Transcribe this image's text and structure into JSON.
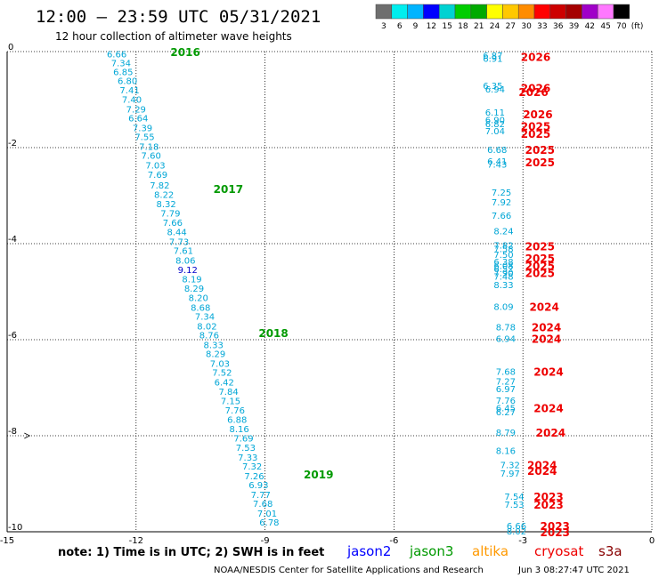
{
  "header": {
    "title": "12:00 – 23:59 UTC 05/31/2021",
    "subtitle": "12 hour collection of altimeter wave heights"
  },
  "colorbar": {
    "labels": [
      "3",
      "6",
      "9",
      "12",
      "15",
      "18",
      "21",
      "24",
      "27",
      "30",
      "33",
      "36",
      "39",
      "42",
      "45",
      "70"
    ],
    "unit": "(ft)",
    "colors": [
      "#6e6e6e",
      "#00eeee",
      "#00b4ff",
      "#0000ff",
      "#00d2d2",
      "#00cd00",
      "#00aa00",
      "#ffff00",
      "#ffc800",
      "#ff8c00",
      "#ff0000",
      "#cd0000",
      "#a50000",
      "#a000c8",
      "#ff78ff",
      "#000000"
    ]
  },
  "footer": {
    "note": "note: 1) Time is in UTC; 2) SWH is in feet",
    "legend": [
      {
        "name": "jason2",
        "color": "#0000ff"
      },
      {
        "name": "jason3",
        "color": "#009900"
      },
      {
        "name": "altika",
        "color": "#ff9900"
      },
      {
        "name": "cryosat",
        "color": "#ee0000"
      },
      {
        "name": "s3a",
        "color": "#880000"
      }
    ],
    "credit": "NOAA/NESDIS Center for Satellite Applications and Research",
    "timestamp": "Jun  3 08:27:47 UTC 2021"
  },
  "chart_data": {
    "type": "scatter",
    "title": "12:00 – 23:59 UTC 05/31/2021",
    "xlim": [
      -15,
      0
    ],
    "ylim": [
      -10,
      0
    ],
    "x_ticks": [
      "-15",
      "-12",
      "-9",
      "-6",
      "-3",
      "0"
    ],
    "y_ticks": [
      "0",
      "-2",
      "-4",
      "-6",
      "-8",
      "-10"
    ],
    "grid": true,
    "series": [
      {
        "name": "jason3",
        "color": "#00a6d6",
        "points": [
          {
            "x": -12.45,
            "y": -0.05,
            "v": "6.66"
          },
          {
            "x": -12.35,
            "y": -0.23,
            "v": "7.34"
          },
          {
            "x": -12.3,
            "y": -0.42,
            "v": "6.85"
          },
          {
            "x": -12.2,
            "y": -0.6,
            "v": "6.80"
          },
          {
            "x": -12.15,
            "y": -0.8,
            "v": "7.41"
          },
          {
            "x": -12.1,
            "y": -0.99,
            "v": "7.40"
          },
          {
            "x": -12.0,
            "y": -1.19,
            "v": "7.29"
          },
          {
            "x": -11.95,
            "y": -1.38,
            "v": "6.64"
          },
          {
            "x": -11.85,
            "y": -1.58,
            "v": "7.39"
          },
          {
            "x": -11.8,
            "y": -1.77,
            "v": "7.55"
          },
          {
            "x": -11.7,
            "y": -1.97,
            "v": "7.18"
          },
          {
            "x": -11.65,
            "y": -2.16,
            "v": "7.60"
          },
          {
            "x": -11.55,
            "y": -2.36,
            "v": "7.03"
          },
          {
            "x": -11.5,
            "y": -2.56,
            "v": "7.69"
          },
          {
            "x": -11.45,
            "y": -2.78,
            "v": "7.82"
          },
          {
            "x": -11.35,
            "y": -2.97,
            "v": "8.22"
          },
          {
            "x": -11.3,
            "y": -3.17,
            "v": "8.32"
          },
          {
            "x": -11.2,
            "y": -3.36,
            "v": "7.79"
          },
          {
            "x": -11.15,
            "y": -3.56,
            "v": "7.66"
          },
          {
            "x": -11.05,
            "y": -3.75,
            "v": "8.44"
          },
          {
            "x": -11.0,
            "y": -3.95,
            "v": "7.73"
          },
          {
            "x": -10.9,
            "y": -4.14,
            "v": "7.61"
          },
          {
            "x": -10.85,
            "y": -4.34,
            "v": "8.06"
          },
          {
            "x": -10.8,
            "y": -4.54,
            "v": "9.12",
            "c": "#0000cc"
          },
          {
            "x": -10.7,
            "y": -4.73,
            "v": "8.19"
          },
          {
            "x": -10.65,
            "y": -4.93,
            "v": "8.29"
          },
          {
            "x": -10.55,
            "y": -5.12,
            "v": "8.20"
          },
          {
            "x": -10.5,
            "y": -5.32,
            "v": "8.68"
          },
          {
            "x": -10.4,
            "y": -5.51,
            "v": "7.34"
          },
          {
            "x": -10.35,
            "y": -5.71,
            "v": "8.02"
          },
          {
            "x": -10.3,
            "y": -5.9,
            "v": "8.76"
          },
          {
            "x": -10.2,
            "y": -6.1,
            "v": "8.33"
          },
          {
            "x": -10.15,
            "y": -6.29,
            "v": "8.29"
          },
          {
            "x": -10.05,
            "y": -6.49,
            "v": "7.03"
          },
          {
            "x": -10.0,
            "y": -6.68,
            "v": "7.52"
          },
          {
            "x": -9.95,
            "y": -6.88,
            "v": "6.42"
          },
          {
            "x": -9.85,
            "y": -7.07,
            "v": "7.84"
          },
          {
            "x": -9.8,
            "y": -7.27,
            "v": "7.15"
          },
          {
            "x": -9.7,
            "y": -7.46,
            "v": "7.76"
          },
          {
            "x": -9.65,
            "y": -7.66,
            "v": "6.88"
          },
          {
            "x": -9.6,
            "y": -7.85,
            "v": "8.16"
          },
          {
            "x": -9.5,
            "y": -8.05,
            "v": "7.69"
          },
          {
            "x": -9.45,
            "y": -8.24,
            "v": "7.53"
          },
          {
            "x": -9.4,
            "y": -8.44,
            "v": "7.33"
          },
          {
            "x": -9.3,
            "y": -8.63,
            "v": "7.32"
          },
          {
            "x": -9.25,
            "y": -8.83,
            "v": "7.26"
          },
          {
            "x": -9.15,
            "y": -9.02,
            "v": "6.93"
          },
          {
            "x": -9.1,
            "y": -9.22,
            "v": "7.77"
          },
          {
            "x": -9.05,
            "y": -9.41,
            "v": "7.68"
          },
          {
            "x": -8.95,
            "y": -9.61,
            "v": "7.01"
          },
          {
            "x": -8.9,
            "y": -9.8,
            "v": "6.78"
          }
        ]
      },
      {
        "name": "cryosat",
        "color": "#00a6d6",
        "points": [
          {
            "x": -3.7,
            "y": -0.07,
            "v": "6.87"
          },
          {
            "x": -3.7,
            "y": -0.14,
            "v": "6.91"
          },
          {
            "x": -3.7,
            "y": -0.7,
            "v": "6.35"
          },
          {
            "x": -3.65,
            "y": -0.78,
            "v": "6.94"
          },
          {
            "x": -3.65,
            "y": -1.26,
            "v": "6.11"
          },
          {
            "x": -3.65,
            "y": -1.42,
            "v": "6.90"
          },
          {
            "x": -3.65,
            "y": -1.5,
            "v": "6.82"
          },
          {
            "x": -3.65,
            "y": -1.65,
            "v": "7.04"
          },
          {
            "x": -3.6,
            "y": -2.04,
            "v": "6.68"
          },
          {
            "x": -3.6,
            "y": -2.28,
            "v": "6.41"
          },
          {
            "x": -3.6,
            "y": -2.34,
            "v": "7.43"
          },
          {
            "x": -3.5,
            "y": -2.93,
            "v": "7.25"
          },
          {
            "x": -3.5,
            "y": -3.13,
            "v": "7.92"
          },
          {
            "x": -3.5,
            "y": -3.41,
            "v": "7.66"
          },
          {
            "x": -3.45,
            "y": -3.73,
            "v": "8.24"
          },
          {
            "x": -3.45,
            "y": -4.03,
            "v": "7.82"
          },
          {
            "x": -3.45,
            "y": -4.1,
            "v": "7.58"
          },
          {
            "x": -3.45,
            "y": -4.22,
            "v": "7.50"
          },
          {
            "x": -3.45,
            "y": -4.37,
            "v": "6.38"
          },
          {
            "x": -3.45,
            "y": -4.45,
            "v": "6.08"
          },
          {
            "x": -3.45,
            "y": -4.52,
            "v": "6.52"
          },
          {
            "x": -3.45,
            "y": -4.6,
            "v": "7.90"
          },
          {
            "x": -3.45,
            "y": -4.68,
            "v": "7.48"
          },
          {
            "x": -3.45,
            "y": -4.85,
            "v": "8.33"
          },
          {
            "x": -3.45,
            "y": -5.31,
            "v": "8.09"
          },
          {
            "x": -3.4,
            "y": -5.73,
            "v": "8.78"
          },
          {
            "x": -3.4,
            "y": -5.97,
            "v": "6.94"
          },
          {
            "x": -3.4,
            "y": -6.66,
            "v": "7.68"
          },
          {
            "x": -3.4,
            "y": -6.86,
            "v": "7.27"
          },
          {
            "x": -3.4,
            "y": -7.02,
            "v": "6.97"
          },
          {
            "x": -3.4,
            "y": -7.26,
            "v": "7.76"
          },
          {
            "x": -3.4,
            "y": -7.42,
            "v": "6.45"
          },
          {
            "x": -3.4,
            "y": -7.5,
            "v": "6.27"
          },
          {
            "x": -3.4,
            "y": -7.93,
            "v": "8.79"
          },
          {
            "x": -3.4,
            "y": -8.31,
            "v": "8.16"
          },
          {
            "x": -3.3,
            "y": -8.6,
            "v": "7.32"
          },
          {
            "x": -3.3,
            "y": -8.78,
            "v": "7.97"
          },
          {
            "x": -3.2,
            "y": -9.26,
            "v": "7.54"
          },
          {
            "x": -3.2,
            "y": -9.43,
            "v": "7.53"
          },
          {
            "x": -3.15,
            "y": -9.87,
            "v": "6.66"
          },
          {
            "x": -3.15,
            "y": -9.98,
            "v": "8.02"
          }
        ]
      }
    ],
    "annotations": [
      {
        "x": -11.2,
        "y": 0.0,
        "text": "2016",
        "color": "#009900"
      },
      {
        "x": -10.2,
        "y": -2.85,
        "text": "2017",
        "color": "#009900"
      },
      {
        "x": -9.15,
        "y": -5.85,
        "text": "2018",
        "color": "#009900"
      },
      {
        "x": -8.1,
        "y": -8.8,
        "text": "2019",
        "color": "#009900"
      },
      {
        "x": -3.05,
        "y": -0.1,
        "text": "2026",
        "color": "#ee0000"
      },
      {
        "x": -3.05,
        "y": -0.75,
        "text": "2026",
        "color": "#ee0000"
      },
      {
        "x": -3.1,
        "y": -0.83,
        "text": "2026",
        "color": "#ee0000"
      },
      {
        "x": -3.0,
        "y": -1.3,
        "text": "2026",
        "color": "#ee0000"
      },
      {
        "x": -3.05,
        "y": -1.55,
        "text": "2025",
        "color": "#ee0000"
      },
      {
        "x": -3.05,
        "y": -1.7,
        "text": "2025",
        "color": "#ee0000"
      },
      {
        "x": -2.95,
        "y": -2.04,
        "text": "2025",
        "color": "#ee0000"
      },
      {
        "x": -2.95,
        "y": -2.3,
        "text": "2025",
        "color": "#ee0000"
      },
      {
        "x": -2.95,
        "y": -4.05,
        "text": "2025",
        "color": "#ee0000"
      },
      {
        "x": -2.95,
        "y": -4.3,
        "text": "2025",
        "color": "#ee0000"
      },
      {
        "x": -2.95,
        "y": -4.45,
        "text": "2025",
        "color": "#ee0000"
      },
      {
        "x": -2.95,
        "y": -4.6,
        "text": "2025",
        "color": "#ee0000"
      },
      {
        "x": -2.85,
        "y": -5.31,
        "text": "2024",
        "color": "#ee0000"
      },
      {
        "x": -2.8,
        "y": -5.73,
        "text": "2024",
        "color": "#ee0000"
      },
      {
        "x": -2.8,
        "y": -5.97,
        "text": "2024",
        "color": "#ee0000"
      },
      {
        "x": -2.75,
        "y": -6.66,
        "text": "2024",
        "color": "#ee0000"
      },
      {
        "x": -2.75,
        "y": -7.42,
        "text": "2024",
        "color": "#ee0000"
      },
      {
        "x": -2.7,
        "y": -7.93,
        "text": "2024",
        "color": "#ee0000"
      },
      {
        "x": -2.9,
        "y": -8.6,
        "text": "2024",
        "color": "#ee0000"
      },
      {
        "x": -2.9,
        "y": -8.72,
        "text": "2024",
        "color": "#ee0000"
      },
      {
        "x": -2.75,
        "y": -9.26,
        "text": "2023",
        "color": "#ee0000"
      },
      {
        "x": -2.75,
        "y": -9.43,
        "text": "2023",
        "color": "#ee0000"
      },
      {
        "x": -2.6,
        "y": -9.87,
        "text": "2023",
        "color": "#ee0000"
      },
      {
        "x": -2.6,
        "y": -10.0,
        "text": "2023",
        "color": "#ee0000"
      }
    ]
  }
}
